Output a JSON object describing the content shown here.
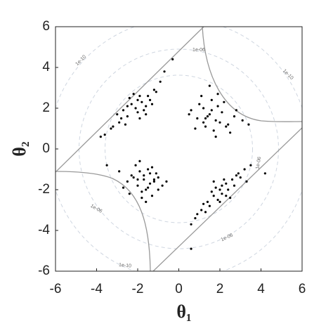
{
  "chart_data": {
    "type": "scatter",
    "x_label": "θ₁",
    "y_label": "θ₂",
    "xlim": [
      -6,
      6
    ],
    "ylim": [
      -6,
      6
    ],
    "xticks": [
      -6,
      -4,
      -2,
      0,
      2,
      4,
      6
    ],
    "yticks": [
      -6,
      -4,
      -2,
      0,
      2,
      4,
      6
    ],
    "color": "#000000",
    "contour_labels": [
      "1e-10",
      "1e-06",
      "1e-10",
      "1e-06",
      "1e-06",
      "1e-10",
      "1e-06"
    ],
    "x": [
      -2.1,
      -1.8,
      -2.5,
      -1.5,
      -2.9,
      -1.2,
      -3.3,
      -2.0,
      -1.6,
      -2.7,
      -0.9,
      -3.6,
      -2.3,
      -1.9,
      -2.4,
      -1.4,
      -3.0,
      -2.2,
      -1.1,
      -2.6,
      -1.7,
      -3.8,
      -2.0,
      -0.7,
      -2.8,
      -1.3,
      -2.5,
      -1.9,
      -3.2,
      -1.6,
      1.5,
      1.8,
      1.2,
      2.1,
      0.9,
      1.6,
      2.4,
      1.3,
      1.9,
      0.6,
      2.7,
      1.1,
      1.7,
      2.2,
      0.8,
      1.4,
      2.0,
      3.1,
      1.0,
      1.6,
      2.5,
      1.2,
      1.9,
      0.5,
      2.3,
      1.5,
      2.8,
      1.8,
      1.3,
      3.4,
      -1.7,
      -1.4,
      -2.0,
      -1.2,
      -2.3,
      -1.6,
      -1.0,
      -1.9,
      -2.5,
      -1.3,
      -0.8,
      -2.1,
      -1.5,
      -1.8,
      -2.7,
      -1.1,
      -1.6,
      -2.2,
      -0.6,
      -1.9,
      -1.4,
      -2.4,
      -1.7,
      -1.0,
      -2.0,
      -1.3,
      -2.9,
      -1.5,
      -1.8,
      -1.2,
      2.0,
      2.3,
      1.7,
      2.6,
      1.4,
      2.9,
      1.1,
      2.1,
      1.8,
      3.2,
      0.8,
      2.4,
      1.5,
      2.7,
      1.9,
      3.5,
      1.2,
      2.2,
      0.6,
      2.5,
      1.6,
      3.0,
      2.0,
      1.3,
      2.8,
      0.9,
      2.3,
      1.7,
      3.3,
      2.1,
      -0.3,
      -3.5,
      0.6,
      4.2
    ],
    "y": [
      2.0,
      2.3,
      1.6,
      2.6,
      1.3,
      2.9,
      1.0,
      1.8,
      2.1,
      1.9,
      3.3,
      0.7,
      2.2,
      1.5,
      2.5,
      2.4,
      1.7,
      2.7,
      2.8,
      1.2,
      1.9,
      0.6,
      2.4,
      3.8,
      1.5,
      2.2,
      2.1,
      2.6,
      1.1,
      1.7,
      1.7,
      1.4,
      2.0,
      1.8,
      1.5,
      2.4,
      1.2,
      1.1,
      2.1,
      1.9,
      1.6,
      2.6,
      0.9,
      2.3,
      1.0,
      1.6,
      1.3,
      1.4,
      2.2,
      1.9,
      0.8,
      1.3,
      2.7,
      1.7,
      1.1,
      3.1,
      1.9,
      0.6,
      1.5,
      1.2,
      -1.5,
      -1.2,
      -1.8,
      -1.6,
      -1.3,
      -2.0,
      -1.4,
      -1.1,
      -1.6,
      -2.3,
      -1.8,
      -0.8,
      -1.0,
      -2.1,
      -1.9,
      -1.2,
      -2.6,
      -1.4,
      -1.6,
      -0.6,
      -1.7,
      -2.2,
      -1.3,
      -2.0,
      -1.5,
      -0.9,
      -1.1,
      -1.9,
      -2.4,
      -1.5,
      -2.0,
      -1.7,
      -2.3,
      -1.5,
      -2.6,
      -1.2,
      -3.0,
      -2.2,
      -1.9,
      -1.0,
      -3.4,
      -2.0,
      -2.8,
      -1.8,
      -2.5,
      -0.8,
      -2.7,
      -1.5,
      -3.7,
      -2.4,
      -2.1,
      -1.4,
      -2.6,
      -3.1,
      -1.3,
      -3.2,
      -2.3,
      -1.6,
      -1.6,
      -1.8,
      4.4,
      -0.8,
      -4.9,
      -1.2
    ]
  }
}
